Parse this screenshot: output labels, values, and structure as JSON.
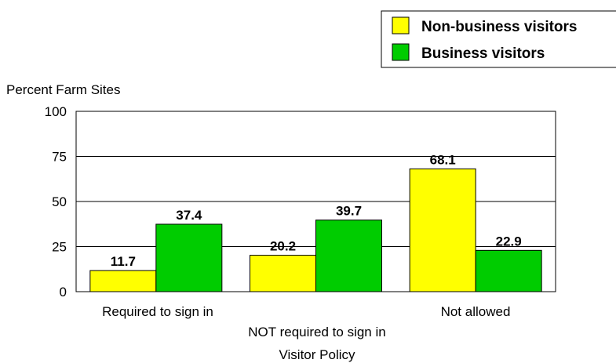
{
  "chart_data": {
    "type": "bar",
    "categories": [
      "Required to sign in",
      "NOT required to sign in",
      "Not allowed"
    ],
    "series": [
      {
        "name": "Non-business visitors",
        "values": [
          11.7,
          20.2,
          68.1
        ],
        "color": "#ffff00"
      },
      {
        "name": "Business visitors",
        "values": [
          37.4,
          39.7,
          22.9
        ],
        "color": "#00cc00"
      }
    ],
    "ylabel": "Percent Farm Sites",
    "xlabel": "Visitor Policy",
    "ylim": [
      0,
      100
    ],
    "yticks": [
      0,
      25,
      50,
      75,
      100
    ],
    "grid": true,
    "legend_position": "top-right"
  }
}
